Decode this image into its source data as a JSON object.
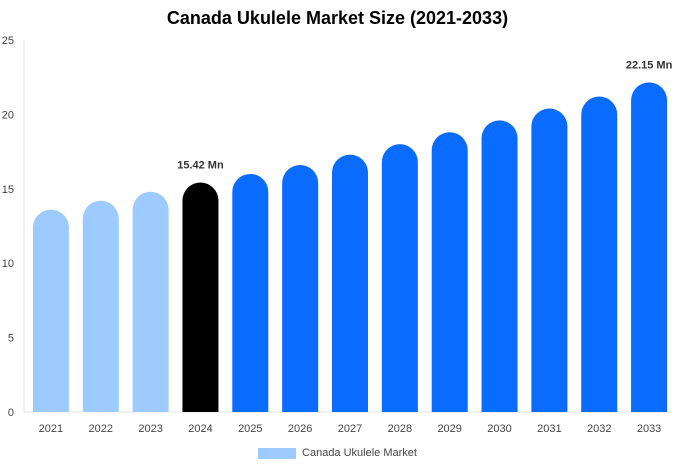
{
  "chart_data": {
    "type": "bar",
    "title": "Canada Ukulele Market Size (2021-2033)",
    "categories": [
      "2021",
      "2022",
      "2023",
      "2024",
      "2025",
      "2026",
      "2027",
      "2028",
      "2029",
      "2030",
      "2031",
      "2032",
      "2033"
    ],
    "series": [
      {
        "name": "Canada Ukulele Market",
        "values": [
          13.6,
          14.2,
          14.8,
          15.42,
          16.0,
          16.6,
          17.3,
          18.0,
          18.8,
          19.6,
          20.4,
          21.2,
          22.15
        ]
      }
    ],
    "bar_colors": [
      "#9ecbff",
      "#9ecbff",
      "#9ecbff",
      "#000000",
      "#0a6cff",
      "#0a6cff",
      "#0a6cff",
      "#0a6cff",
      "#0a6cff",
      "#0a6cff",
      "#0a6cff",
      "#0a6cff",
      "#0a6cff"
    ],
    "data_labels": [
      {
        "index": 3,
        "text": "15.42 Mn"
      },
      {
        "index": 12,
        "text": "22.15 Mn"
      }
    ],
    "yticks": [
      0,
      5,
      10,
      15,
      20,
      25
    ],
    "ylim": [
      0,
      25
    ],
    "xlabel": "",
    "ylabel": "",
    "grid": false,
    "legend_position": "bottom"
  }
}
